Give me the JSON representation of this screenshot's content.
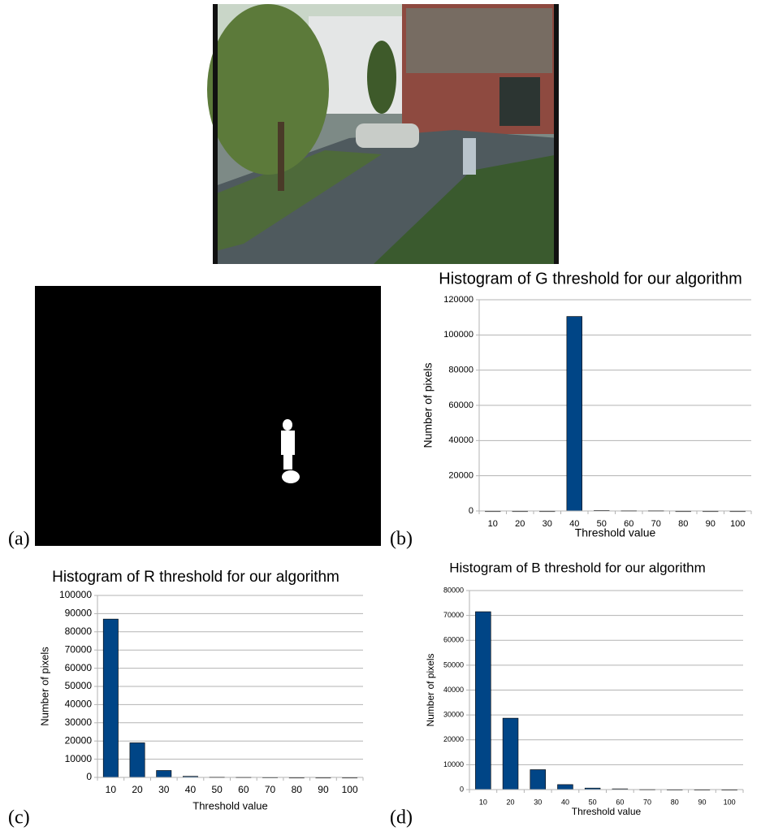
{
  "panel_labels": [
    "(a)",
    "(b)",
    "(c)",
    "(d)"
  ],
  "chart_data": [
    {
      "type": "bar",
      "title": "Histogram of G threshold for our algorithm",
      "x_label": "Threshold value",
      "y_label": "Number of pixels",
      "categories": [
        "10",
        "20",
        "30",
        "40",
        "50",
        "60",
        "70",
        "80",
        "90",
        "100"
      ],
      "values": [
        0,
        0,
        0,
        110500,
        300,
        200,
        200,
        0,
        0,
        0
      ],
      "color": "#004586",
      "ylim": [
        0,
        120000
      ],
      "yticks": [
        0,
        20000,
        40000,
        60000,
        80000,
        100000,
        120000
      ],
      "grid": true
    },
    {
      "type": "bar",
      "title": "Histogram of R threshold for our algorithm",
      "x_label": "Threshold value",
      "y_label": "Number of pixels",
      "categories": [
        "10",
        "20",
        "30",
        "40",
        "50",
        "60",
        "70",
        "80",
        "90",
        "100"
      ],
      "values": [
        87000,
        19000,
        3800,
        600,
        200,
        150,
        100,
        0,
        0,
        0
      ],
      "color": "#004586",
      "ylim": [
        0,
        100000
      ],
      "yticks": [
        0,
        10000,
        20000,
        30000,
        40000,
        50000,
        60000,
        70000,
        80000,
        90000,
        100000
      ],
      "grid": true
    },
    {
      "type": "bar",
      "title": "Histogram of B threshold for our algorithm",
      "x_label": "Threshold value",
      "y_label": "Number of pixels",
      "categories": [
        "10",
        "20",
        "30",
        "40",
        "50",
        "60",
        "70",
        "80",
        "90",
        "100"
      ],
      "values": [
        71500,
        28700,
        8000,
        2000,
        600,
        300,
        100,
        50,
        30,
        20
      ],
      "color": "#004586",
      "ylim": [
        0,
        80000
      ],
      "yticks": [
        0,
        10000,
        20000,
        30000,
        40000,
        50000,
        60000,
        70000,
        80000
      ],
      "grid": true
    }
  ]
}
